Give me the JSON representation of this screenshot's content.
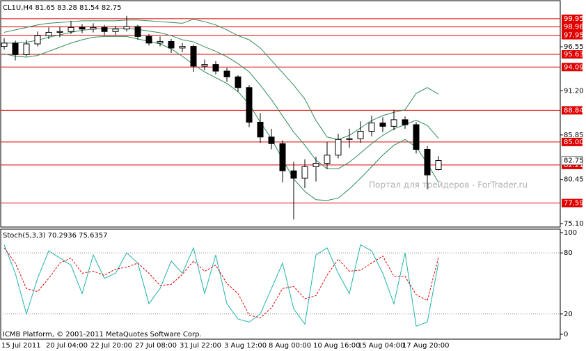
{
  "chart_data": [
    {
      "type": "candlestick",
      "title": "CL1U,H4  81.65 83.28 81.54 82.75",
      "categories": [
        "15 Jul 2011",
        null,
        null,
        null,
        "20 Jul 04:00",
        null,
        null,
        null,
        "22 Jul 20:00",
        null,
        null,
        null,
        "27 Jul 08:00",
        null,
        null,
        null,
        "31 Jul 22:00",
        null,
        null,
        null,
        "3 Aug 12:00",
        null,
        null,
        null,
        "8 Aug 00:00",
        null,
        null,
        null,
        "10 Aug 16:00",
        null,
        null,
        null,
        "15 Aug 04:00",
        null,
        null,
        null,
        "17 Aug 20:00",
        null,
        null,
        null
      ],
      "open": [
        96.6,
        97.0,
        95.6,
        96.9,
        97.9,
        98.3,
        98.4,
        98.9,
        98.7,
        98.9,
        98.4,
        98.7,
        99.0,
        97.8,
        97.0,
        97.2,
        96.4,
        96.6,
        94.2,
        94.4,
        93.6,
        92.9,
        91.6,
        87.4,
        85.6,
        84.8,
        81.5,
        80.6,
        82.0,
        82.4,
        83.4,
        85.3,
        85.4,
        86.3,
        87.3,
        86.9,
        87.7,
        87.1,
        84.1,
        81.65
      ],
      "high": [
        97.6,
        97.3,
        97.4,
        98.4,
        98.9,
        99.0,
        99.7,
        99.3,
        99.4,
        99.2,
        99.1,
        100.3,
        99.2,
        98.1,
        97.8,
        97.5,
        97.0,
        96.8,
        95.0,
        94.8,
        94.0,
        93.1,
        91.9,
        88.5,
        86.6,
        85.2,
        82.6,
        82.9,
        83.2,
        85.0,
        86.0,
        86.6,
        87.5,
        88.2,
        88.0,
        88.9,
        88.1,
        87.4,
        84.5,
        83.28
      ],
      "low": [
        96.2,
        94.9,
        95.4,
        96.6,
        97.5,
        97.7,
        98.1,
        98.2,
        98.3,
        97.9,
        98.0,
        98.4,
        97.4,
        96.7,
        96.6,
        95.8,
        95.9,
        93.5,
        93.7,
        93.2,
        92.3,
        91.1,
        86.8,
        84.9,
        84.1,
        80.1,
        75.6,
        79.4,
        80.2,
        81.7,
        83.0,
        84.3,
        84.9,
        85.7,
        86.2,
        86.4,
        86.6,
        83.6,
        79.3,
        81.54
      ],
      "close": [
        97.0,
        95.6,
        96.9,
        97.9,
        98.3,
        98.4,
        98.9,
        98.7,
        98.9,
        98.4,
        98.7,
        99.0,
        97.8,
        97.0,
        97.2,
        96.4,
        96.6,
        94.2,
        94.4,
        93.6,
        92.9,
        91.6,
        87.4,
        85.6,
        84.8,
        81.5,
        80.6,
        82.0,
        82.4,
        83.4,
        85.3,
        85.4,
        86.3,
        87.3,
        86.9,
        87.7,
        87.1,
        84.1,
        81.0,
        82.75
      ],
      "upper_band": [
        98.3,
        98.6,
        98.9,
        99.2,
        99.4,
        99.5,
        99.6,
        99.7,
        99.7,
        99.7,
        99.7,
        99.8,
        99.8,
        99.7,
        99.6,
        99.5,
        99.4,
        99.9,
        99.6,
        99.2,
        98.6,
        97.9,
        97.4,
        96.4,
        94.9,
        93.4,
        91.9,
        90.2,
        87.6,
        85.6,
        85.3,
        85.8,
        86.7,
        87.6,
        88.2,
        88.6,
        88.9,
        90.9,
        91.6,
        90.8
      ],
      "middle_band": [
        97.0,
        97.0,
        97.1,
        97.35,
        97.7,
        98.0,
        98.3,
        98.55,
        98.7,
        98.75,
        98.75,
        98.8,
        98.65,
        98.45,
        98.25,
        97.9,
        97.4,
        97.15,
        96.55,
        96.0,
        95.35,
        94.5,
        93.5,
        91.9,
        90.15,
        88.15,
        86.2,
        84.6,
        82.8,
        81.75,
        81.75,
        82.55,
        83.65,
        84.8,
        85.8,
        86.6,
        87.1,
        87.65,
        87.0,
        85.45
      ],
      "lower_band": [
        95.7,
        95.4,
        95.3,
        95.5,
        96.0,
        96.5,
        97.0,
        97.4,
        97.7,
        97.8,
        97.8,
        97.8,
        97.5,
        97.2,
        96.9,
        96.3,
        95.4,
        94.4,
        93.5,
        92.8,
        92.1,
        91.1,
        89.6,
        87.4,
        85.4,
        82.9,
        80.5,
        79.0,
        78.0,
        77.9,
        78.2,
        79.3,
        80.6,
        82.0,
        83.4,
        84.6,
        85.3,
        84.4,
        82.4,
        80.1
      ],
      "band_color": "#2e8b57",
      "level_color": "#e00000",
      "ylim": [
        74.68,
        102.14
      ],
      "yticks": [
        96.55,
        {
          "value": 91.2,
          "label": "91.20"
        },
        85.85,
        80.45,
        {
          "value": 75.1,
          "label": "75.10"
        }
      ],
      "levels": [
        99.95,
        98.96,
        97.95,
        95.63,
        94.09,
        88.84,
        {
          "value": 85,
          "label": "85.00"
        },
        82.21,
        77.59
      ],
      "last_price": 82.75,
      "watermark": "Портал для трейдеров - ForTrader.ru"
    },
    {
      "type": "line",
      "title": "Stoch(5,3,3) 70.2936 75.6357",
      "series": [
        {
          "color": "#20b2aa",
          "dash": false,
          "values": [
            88,
            60,
            20,
            55,
            82,
            75,
            68,
            40,
            78,
            55,
            60,
            80,
            70,
            30,
            45,
            72,
            60,
            85,
            40,
            78,
            30,
            15,
            12,
            20,
            45,
            70,
            25,
            10,
            78,
            85,
            60,
            40,
            88,
            82,
            60,
            30,
            80,
            8,
            12,
            70.2936
          ]
        },
        {
          "color": "#e00000",
          "dash": true,
          "values": [
            85,
            70,
            45,
            42,
            55,
            70,
            75,
            60,
            62,
            58,
            64,
            66,
            70,
            60,
            48,
            49,
            59,
            72,
            62,
            68,
            50,
            40,
            19,
            16,
            26,
            45,
            47,
            35,
            38,
            58,
            74,
            62,
            63,
            70,
            77,
            57,
            57,
            39,
            33,
            75.6357
          ]
        }
      ],
      "ylim": [
        -4.8,
        103.4
      ],
      "yticks": [
        0,
        20,
        80,
        100
      ],
      "levels": [
        20,
        80
      ],
      "footer": "ICMB Platform, © 2001-2011 MetaQuotes Software Corp."
    }
  ]
}
